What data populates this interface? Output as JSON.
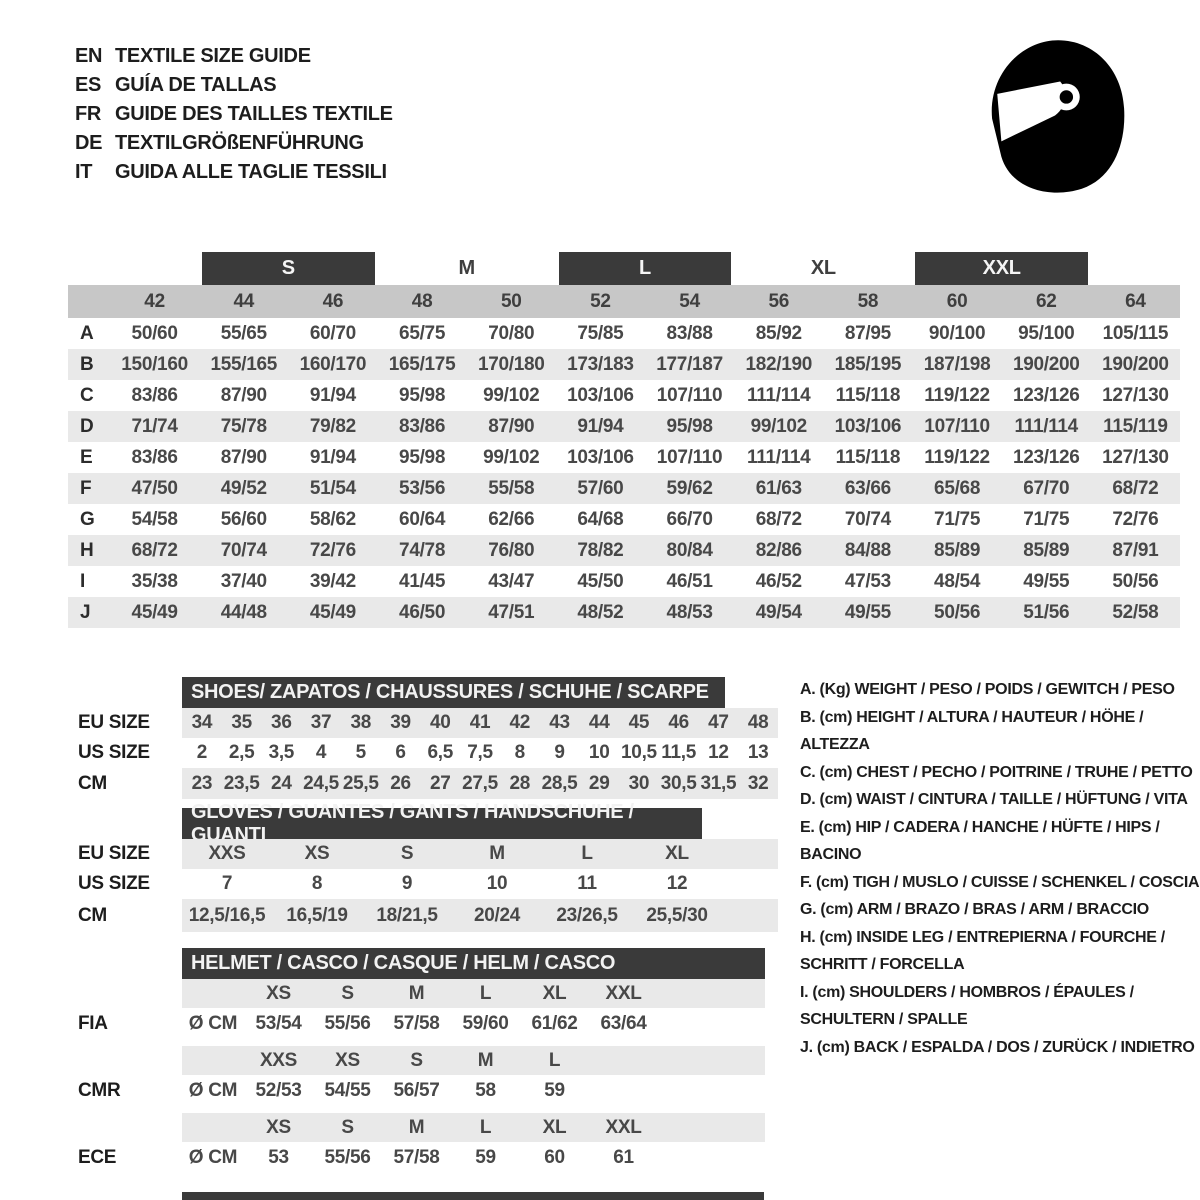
{
  "colors": {
    "accent_dark": "#3a3a3a",
    "band_gray": "#c7c7c7",
    "row_gray": "#e9e9e9",
    "text_dark": "#1d1d1d",
    "text_value": "#484848"
  },
  "header": {
    "languages": [
      {
        "code": "EN",
        "title": "TEXTILE SIZE GUIDE"
      },
      {
        "code": "ES",
        "title": "GUÍA DE TALLAS"
      },
      {
        "code": "FR",
        "title": "GUIDE DES TAILLES TEXTILE"
      },
      {
        "code": "DE",
        "title": "TEXTILGRÖßENFÜHRUNG"
      },
      {
        "code": "IT",
        "title": "GUIDA ALLE TAGLIE TESSILI"
      }
    ],
    "logo_icon": "racing-helmet-icon"
  },
  "main_table": {
    "size_groups": [
      {
        "label": "S",
        "boxed": true
      },
      {
        "label": "M",
        "boxed": false
      },
      {
        "label": "L",
        "boxed": true
      },
      {
        "label": "XL",
        "boxed": false
      },
      {
        "label": "XXL",
        "boxed": true
      }
    ],
    "columns": [
      "42",
      "44",
      "46",
      "48",
      "50",
      "52",
      "54",
      "56",
      "58",
      "60",
      "62",
      "64"
    ],
    "rows": [
      {
        "label": "A",
        "values": [
          "50/60",
          "55/65",
          "60/70",
          "65/75",
          "70/80",
          "75/85",
          "83/88",
          "85/92",
          "87/95",
          "90/100",
          "95/100",
          "105/115"
        ]
      },
      {
        "label": "B",
        "values": [
          "150/160",
          "155/165",
          "160/170",
          "165/175",
          "170/180",
          "173/183",
          "177/187",
          "182/190",
          "185/195",
          "187/198",
          "190/200",
          "190/200"
        ]
      },
      {
        "label": "C",
        "values": [
          "83/86",
          "87/90",
          "91/94",
          "95/98",
          "99/102",
          "103/106",
          "107/110",
          "111/114",
          "115/118",
          "119/122",
          "123/126",
          "127/130"
        ]
      },
      {
        "label": "D",
        "values": [
          "71/74",
          "75/78",
          "79/82",
          "83/86",
          "87/90",
          "91/94",
          "95/98",
          "99/102",
          "103/106",
          "107/110",
          "111/114",
          "115/119"
        ]
      },
      {
        "label": "E",
        "values": [
          "83/86",
          "87/90",
          "91/94",
          "95/98",
          "99/102",
          "103/106",
          "107/110",
          "111/114",
          "115/118",
          "119/122",
          "123/126",
          "127/130"
        ]
      },
      {
        "label": "F",
        "values": [
          "47/50",
          "49/52",
          "51/54",
          "53/56",
          "55/58",
          "57/60",
          "59/62",
          "61/63",
          "63/66",
          "65/68",
          "67/70",
          "68/72"
        ]
      },
      {
        "label": "G",
        "values": [
          "54/58",
          "56/60",
          "58/62",
          "60/64",
          "62/66",
          "64/68",
          "66/70",
          "68/72",
          "70/74",
          "71/75",
          "71/75",
          "72/76"
        ]
      },
      {
        "label": "H",
        "values": [
          "68/72",
          "70/74",
          "72/76",
          "74/78",
          "76/80",
          "78/82",
          "80/84",
          "82/86",
          "84/88",
          "85/89",
          "85/89",
          "87/91"
        ]
      },
      {
        "label": "I",
        "values": [
          "35/38",
          "37/40",
          "39/42",
          "41/45",
          "43/47",
          "45/50",
          "46/51",
          "46/52",
          "47/53",
          "48/54",
          "49/55",
          "50/56"
        ]
      },
      {
        "label": "J",
        "values": [
          "45/49",
          "44/48",
          "45/49",
          "46/50",
          "47/51",
          "48/52",
          "48/53",
          "49/54",
          "49/55",
          "50/56",
          "51/56",
          "52/58"
        ]
      }
    ]
  },
  "shoes": {
    "title": "SHOES/ ZAPATOS / CHAUSSURES / SCHUHE / SCARPE",
    "rows": [
      {
        "label": "EU SIZE",
        "values": [
          "34",
          "35",
          "36",
          "37",
          "38",
          "39",
          "40",
          "41",
          "42",
          "43",
          "44",
          "45",
          "46",
          "47",
          "48"
        ]
      },
      {
        "label": "US SIZE",
        "values": [
          "2",
          "2,5",
          "3,5",
          "4",
          "5",
          "6",
          "6,5",
          "7,5",
          "8",
          "9",
          "10",
          "10,5",
          "11,5",
          "12",
          "13"
        ]
      },
      {
        "label": "CM",
        "values": [
          "23",
          "23,5",
          "24",
          "24,5",
          "25,5",
          "26",
          "27",
          "27,5",
          "28",
          "28,5",
          "29",
          "30",
          "30,5",
          "31,5",
          "32"
        ]
      }
    ]
  },
  "gloves": {
    "title": "GLOVES / GUANTES / GANTS / HANDSCHUHE / GUANTI",
    "rows": [
      {
        "label": "EU SIZE",
        "values": [
          "XXS",
          "XS",
          "S",
          "M",
          "L",
          "XL"
        ]
      },
      {
        "label": "US SIZE",
        "values": [
          "7",
          "8",
          "9",
          "10",
          "11",
          "12"
        ]
      },
      {
        "label": "CM",
        "values": [
          "12,5/16,5",
          "16,5/19",
          "18/21,5",
          "20/24",
          "23/26,5",
          "25,5/30"
        ]
      }
    ]
  },
  "helmet": {
    "title": "HELMET / CASCO / CASQUE / HELM / CASCO",
    "standards": [
      {
        "label": "FIA",
        "unit": "Ø CM",
        "sizes": [
          "XS",
          "S",
          "M",
          "L",
          "XL",
          "XXL"
        ],
        "values": [
          "53/54",
          "55/56",
          "57/58",
          "59/60",
          "61/62",
          "63/64"
        ]
      },
      {
        "label": "CMR",
        "unit": "Ø CM",
        "sizes": [
          "XXS",
          "XS",
          "S",
          "M",
          "L",
          ""
        ],
        "values": [
          "52/53",
          "54/55",
          "56/57",
          "58",
          "59",
          ""
        ]
      },
      {
        "label": "ECE",
        "unit": "Ø CM",
        "sizes": [
          "XS",
          "S",
          "M",
          "L",
          "XL",
          "XXL"
        ],
        "values": [
          "53",
          "55/56",
          "57/58",
          "59",
          "60",
          "61"
        ]
      }
    ]
  },
  "legend": {
    "items": [
      "A. (Kg) WEIGHT / PESO / POIDS / GEWITCH / PESO",
      "B. (cm) HEIGHT / ALTURA / HAUTEUR / HÖHE / ALTEZZA",
      "C. (cm) CHEST / PECHO / POITRINE / TRUHE / PETTO",
      "D. (cm) WAIST / CINTURA / TAILLE / HÜFTUNG / VITA",
      "E. (cm) HIP / CADERA / HANCHE / HÜFTE / HIPS /  BACINO",
      "F. (cm) TIGH / MUSLO / CUISSE / SCHENKEL / COSCIA",
      "G. (cm) ARM  / BRAZO / BRAS / ARM / BRACCIO",
      "H. (cm) INSIDE LEG / ENTREPIERNA / FOURCHE / SCHRITT / FORCELLA",
      "I.  (cm) SHOULDERS / HOMBROS / ÉPAULES / SCHULTERN / SPALLE",
      "J. (cm) BACK / ESPALDA / DOS / ZURÜCK / INDIETRO"
    ]
  }
}
